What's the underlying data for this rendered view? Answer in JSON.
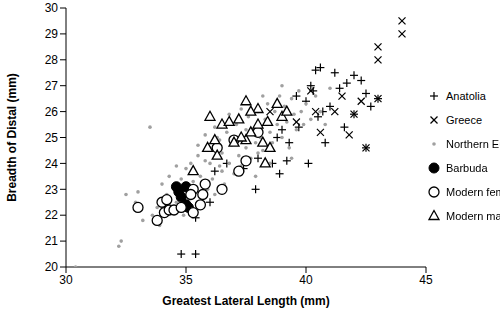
{
  "chart_data": {
    "type": "scatter",
    "x_label": "Greatest Lateral Length (mm)",
    "y_label": "Breadth of Distal (mm)",
    "xlim": [
      30,
      45
    ],
    "xticks": [
      30,
      35,
      40,
      45
    ],
    "ylim": [
      20,
      30
    ],
    "yticks": [
      20,
      21,
      22,
      23,
      24,
      25,
      26,
      27,
      28,
      29,
      30
    ],
    "grid": false,
    "legend": "right",
    "series": [
      {
        "name": "Anatolia",
        "color": "#000000",
        "marker": "plus",
        "x": [
          40.6,
          40.4,
          41.2,
          42.0,
          41.7,
          42.3,
          41.4,
          40.2,
          40.3,
          42.5,
          39.6,
          40.0,
          41.0,
          43.0,
          42.7,
          40.7,
          42.0,
          41.6,
          39.0,
          39.7,
          40.5,
          38.8,
          39.3,
          40.8,
          42.5,
          38.0,
          38.6,
          39.2,
          40.1,
          36.7,
          37.4,
          38.9,
          36.2,
          37.9,
          35.4,
          34.8,
          35.4,
          36.0
        ],
        "y": [
          27.7,
          27.6,
          27.5,
          27.4,
          27.1,
          27.2,
          26.9,
          27.0,
          26.8,
          26.7,
          26.6,
          26.4,
          26.2,
          26.5,
          26.2,
          26.0,
          25.9,
          25.4,
          25.3,
          25.4,
          25.8,
          25.0,
          24.8,
          24.8,
          24.6,
          24.2,
          24.0,
          24.1,
          24.0,
          24.0,
          23.8,
          23.6,
          23.7,
          23.0,
          21.9,
          20.5,
          20.5,
          22.5
        ]
      },
      {
        "name": "Greece",
        "color": "#000000",
        "marker": "x",
        "x": [
          44.0,
          44.0,
          43.0,
          43.0,
          40.2,
          41.5,
          42.3,
          43.0,
          40.4,
          41.2,
          42.0,
          40.6,
          41.8,
          42.5,
          38.5,
          39.6
        ],
        "y": [
          29.5,
          29.0,
          28.5,
          28.0,
          26.8,
          26.6,
          26.4,
          26.5,
          26.0,
          26.0,
          25.9,
          25.2,
          25.1,
          24.6,
          26.0,
          25.6
        ]
      },
      {
        "name": "Northern Europe",
        "color": "#a0a0a0",
        "marker": "point",
        "x": [
          30.4,
          32.3,
          32.2,
          32.5,
          32.9,
          33.0,
          33.5,
          33.2,
          33.6,
          33.8,
          33.9,
          34.0,
          34.2,
          34.3,
          34.5,
          34.6,
          34.8,
          34.9,
          35.0,
          35.1,
          35.2,
          35.3,
          35.4,
          35.5,
          35.6,
          35.7,
          35.8,
          35.9,
          36.0,
          36.1,
          36.2,
          36.3,
          36.4,
          36.5,
          36.6,
          36.7,
          36.8,
          36.9,
          37.0,
          37.1,
          37.2,
          37.3,
          37.4,
          37.5,
          37.6,
          37.7,
          37.8,
          37.9,
          38.0,
          38.1,
          38.2,
          38.3,
          38.4,
          38.5,
          38.6,
          38.7,
          38.8,
          38.9,
          39.0,
          39.1,
          39.2,
          39.3,
          39.4,
          39.5,
          39.6,
          39.7,
          39.8,
          39.9,
          40.0,
          40.2,
          40.4,
          40.6,
          40.8,
          41.0,
          36.0,
          35.0,
          36.5,
          37.0,
          37.5,
          38.0,
          38.5,
          36.2,
          35.5,
          34.6,
          36.8,
          37.3,
          38.2,
          39.0,
          35.8,
          36.4,
          37.9,
          39.4
        ],
        "y": [
          20.0,
          21.0,
          20.8,
          22.8,
          22.5,
          22.9,
          25.4,
          21.8,
          22.0,
          22.3,
          21.6,
          23.2,
          22.8,
          23.5,
          23.0,
          22.5,
          23.4,
          22.0,
          23.8,
          22.6,
          24.0,
          23.3,
          22.9,
          24.3,
          23.5,
          22.5,
          24.1,
          23.0,
          24.6,
          23.4,
          22.8,
          25.0,
          23.9,
          24.4,
          23.2,
          25.2,
          24.0,
          24.7,
          23.6,
          25.5,
          24.3,
          23.9,
          25.0,
          24.6,
          25.8,
          24.2,
          25.3,
          24.8,
          26.0,
          25.0,
          24.5,
          25.7,
          26.3,
          25.2,
          24.8,
          26.0,
          25.5,
          26.6,
          25.0,
          26.2,
          25.6,
          24.6,
          26.5,
          25.9,
          25.3,
          26.8,
          26.0,
          25.5,
          26.3,
          25.7,
          26.6,
          26.0,
          25.5,
          26.9,
          24.0,
          23.0,
          23.7,
          24.9,
          25.3,
          24.4,
          24.0,
          25.4,
          24.7,
          23.9,
          25.9,
          26.1,
          26.6,
          27.0,
          25.1,
          24.9,
          23.5,
          24.2
        ]
      },
      {
        "name": "Barbuda",
        "color": "#000000",
        "marker": "circle",
        "x": [
          34.6,
          35.0,
          34.8,
          35.0,
          35.1,
          34.7
        ],
        "y": [
          23.1,
          23.1,
          22.7,
          22.4,
          22.3,
          22.9
        ]
      },
      {
        "name": "Modern female",
        "color": "#000000",
        "marker": "open_circle",
        "x": [
          33.0,
          33.8,
          34.1,
          34.3,
          34.5,
          34.0,
          34.8,
          35.3,
          35.6,
          35.3,
          35.8,
          35.2,
          35.7,
          36.5,
          37.2,
          36.3,
          37.0,
          38.0,
          37.5,
          34.2
        ],
        "y": [
          22.3,
          21.8,
          22.1,
          22.2,
          22.2,
          22.5,
          22.3,
          22.1,
          22.4,
          23.0,
          23.2,
          22.8,
          22.8,
          23.0,
          23.7,
          24.6,
          24.9,
          25.2,
          24.1,
          22.6
        ]
      },
      {
        "name": "Modern male",
        "color": "#000000",
        "marker": "open_triangle",
        "x": [
          35.3,
          35.9,
          36.2,
          36.0,
          36.5,
          36.8,
          37.2,
          37.5,
          37.3,
          37.7,
          38.0,
          37.7,
          38.0,
          38.4,
          38.8,
          38.2,
          38.5,
          37.0,
          39.0,
          39.2,
          36.3,
          38.3,
          37.5
        ],
        "y": [
          23.7,
          24.6,
          24.9,
          25.8,
          25.5,
          25.6,
          25.7,
          24.9,
          25.0,
          25.2,
          26.1,
          26.0,
          25.5,
          25.6,
          26.3,
          24.8,
          24.6,
          24.8,
          25.8,
          26.0,
          24.3,
          24.0,
          26.4
        ]
      }
    ]
  }
}
